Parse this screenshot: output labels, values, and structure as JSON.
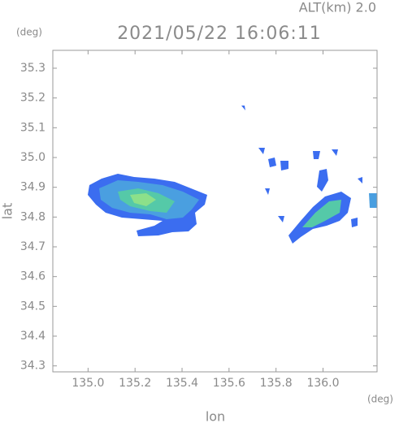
{
  "header": {
    "altitude": "ALT(km) 2.0",
    "timestamp": "2021/05/22 16:06:11"
  },
  "map": {
    "y_unit": "(deg)",
    "x_unit": "(deg)",
    "xlabel": "lon",
    "ylabel": "lat",
    "xlim": [
      134.85,
      136.23
    ],
    "ylim": [
      34.28,
      35.36
    ],
    "xticks": [
      {
        "value": 135,
        "label": "135.0"
      },
      135.2,
      135.4,
      135.6,
      135.8,
      {
        "value": 136,
        "label": "136.0"
      }
    ],
    "yticks": [
      35.3,
      35.2,
      35.1,
      {
        "value": 35,
        "label": "35.0"
      },
      34.9,
      34.8,
      34.7,
      34.6,
      34.5,
      34.4,
      34.3
    ]
  }
}
